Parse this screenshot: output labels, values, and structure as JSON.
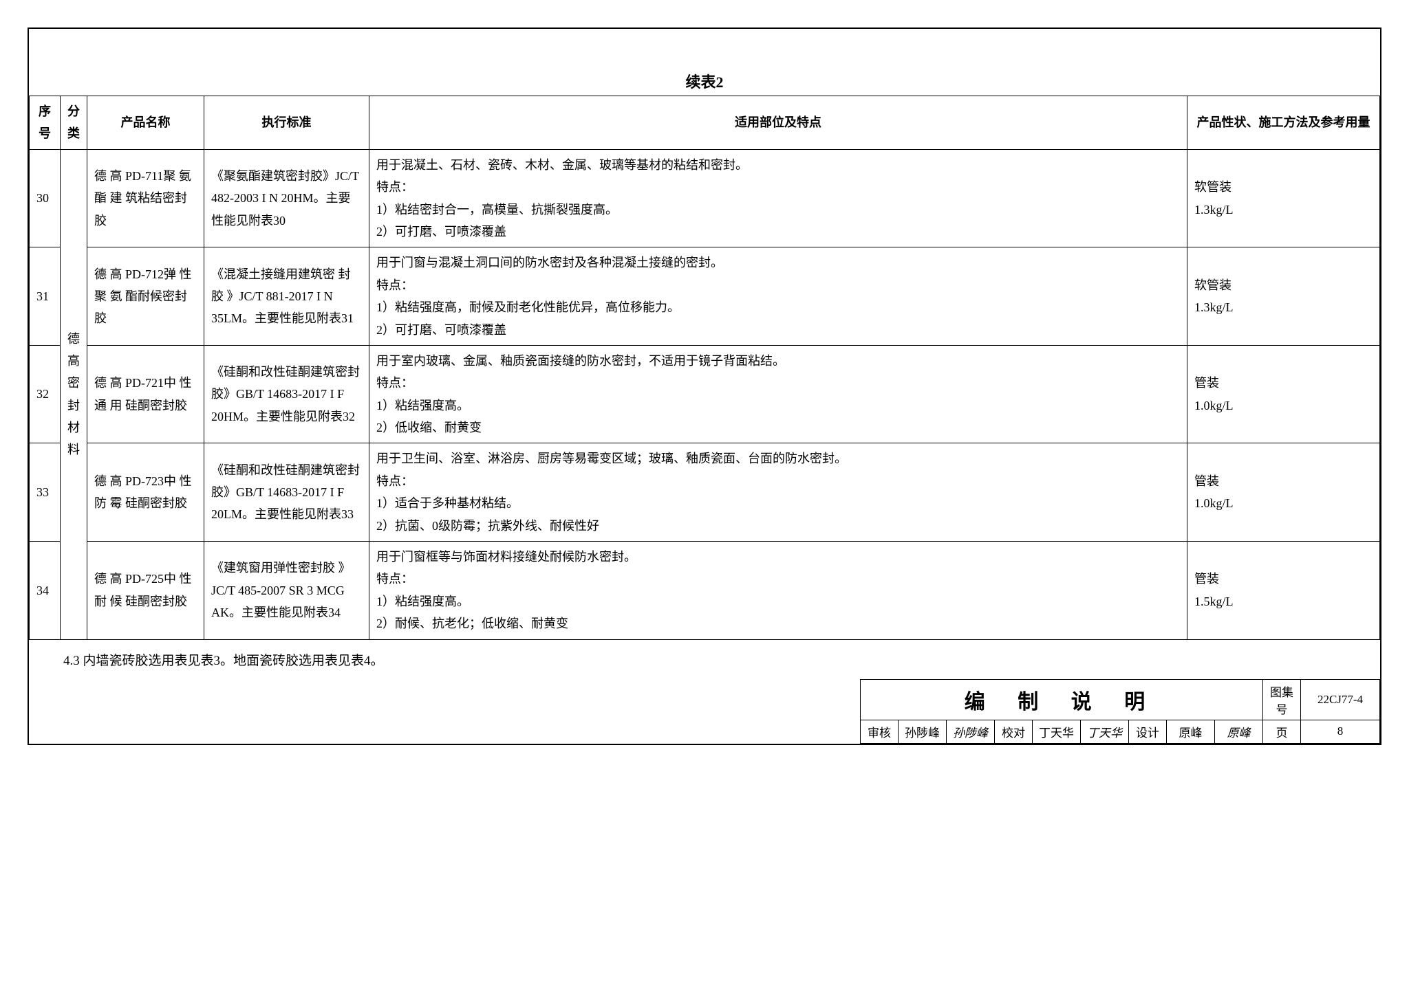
{
  "tableTitle": "续表2",
  "headers": {
    "seq": "序号",
    "cat": "分类",
    "name": "产品名称",
    "std": "执行标准",
    "feat": "适用部位及特点",
    "prod": "产品性状、施工方法及参考用量"
  },
  "categoryMerged": "德高密封材料",
  "rows": [
    {
      "seq": "30",
      "name": "德 高 PD-711聚 氨 酯 建 筑粘结密封胶",
      "std": "《聚氨酯建筑密封胶》JC/T 482-2003 I N 20HM。主要性能见附表30",
      "feat": "用于混凝土、石材、瓷砖、木材、金属、玻璃等基材的粘结和密封。\n特点：\n1）粘结密封合一，高模量、抗撕裂强度高。\n2）可打磨、可喷漆覆盖",
      "prod": "软管装\n1.3kg/L"
    },
    {
      "seq": "31",
      "name": "德 高 PD-712弹 性 聚 氨 酯耐候密封胶",
      "std": "《混凝土接缝用建筑密 封 胶 》JC/T 881-2017 I N 35LM。主要性能见附表31",
      "feat": "用于门窗与混凝土洞口间的防水密封及各种混凝土接缝的密封。\n特点：\n1）粘结强度高，耐候及耐老化性能优异，高位移能力。\n2）可打磨、可喷漆覆盖",
      "prod": "软管装\n1.3kg/L"
    },
    {
      "seq": "32",
      "name": "德 高 PD-721中 性 通 用 硅酮密封胶",
      "std": "《硅酮和改性硅酮建筑密封胶》GB/T 14683-2017 I F 20HM。主要性能见附表32",
      "feat": "用于室内玻璃、金属、釉质瓷面接缝的防水密封，不适用于镜子背面粘结。\n特点：\n1）粘结强度高。\n2）低收缩、耐黄变",
      "prod": "管装\n1.0kg/L"
    },
    {
      "seq": "33",
      "name": "德 高 PD-723中 性 防 霉 硅酮密封胶",
      "std": "《硅酮和改性硅酮建筑密封胶》GB/T 14683-2017 I F 20LM。主要性能见附表33",
      "feat": "用于卫生间、浴室、淋浴房、厨房等易霉变区域；玻璃、釉质瓷面、台面的防水密封。\n特点：\n1）适合于多种基材粘结。\n2）抗菌、0级防霉；抗紫外线、耐候性好",
      "prod": "管装\n1.0kg/L"
    },
    {
      "seq": "34",
      "name": "德 高 PD-725中 性 耐 候 硅酮密封胶",
      "std": "《建筑窗用弹性密封胶 》JC/T  485-2007 SR 3 MCG AK。主要性能见附表34",
      "feat": "用于门窗框等与饰面材料接缝处耐候防水密封。\n特点：\n1）粘结强度高。\n2）耐候、抗老化；低收缩、耐黄变",
      "prod": "管装\n1.5kg/L"
    }
  ],
  "footnote": "4.3 内墙瓷砖胶选用表见表3。地面瓷砖胶选用表见表4。",
  "titleblock": {
    "title": "编 制 说 明",
    "setLabel": "图集号",
    "setNo": "22CJ77-4",
    "pageLabel": "页",
    "pageNo": "8",
    "review": "审核",
    "reviewName": "孙陟峰",
    "reviewSig": "孙陟峰",
    "check": "校对",
    "checkName": "丁天华",
    "checkSig": "丁天华",
    "design": "设计",
    "designName": "原峰",
    "designSig": "原峰"
  }
}
